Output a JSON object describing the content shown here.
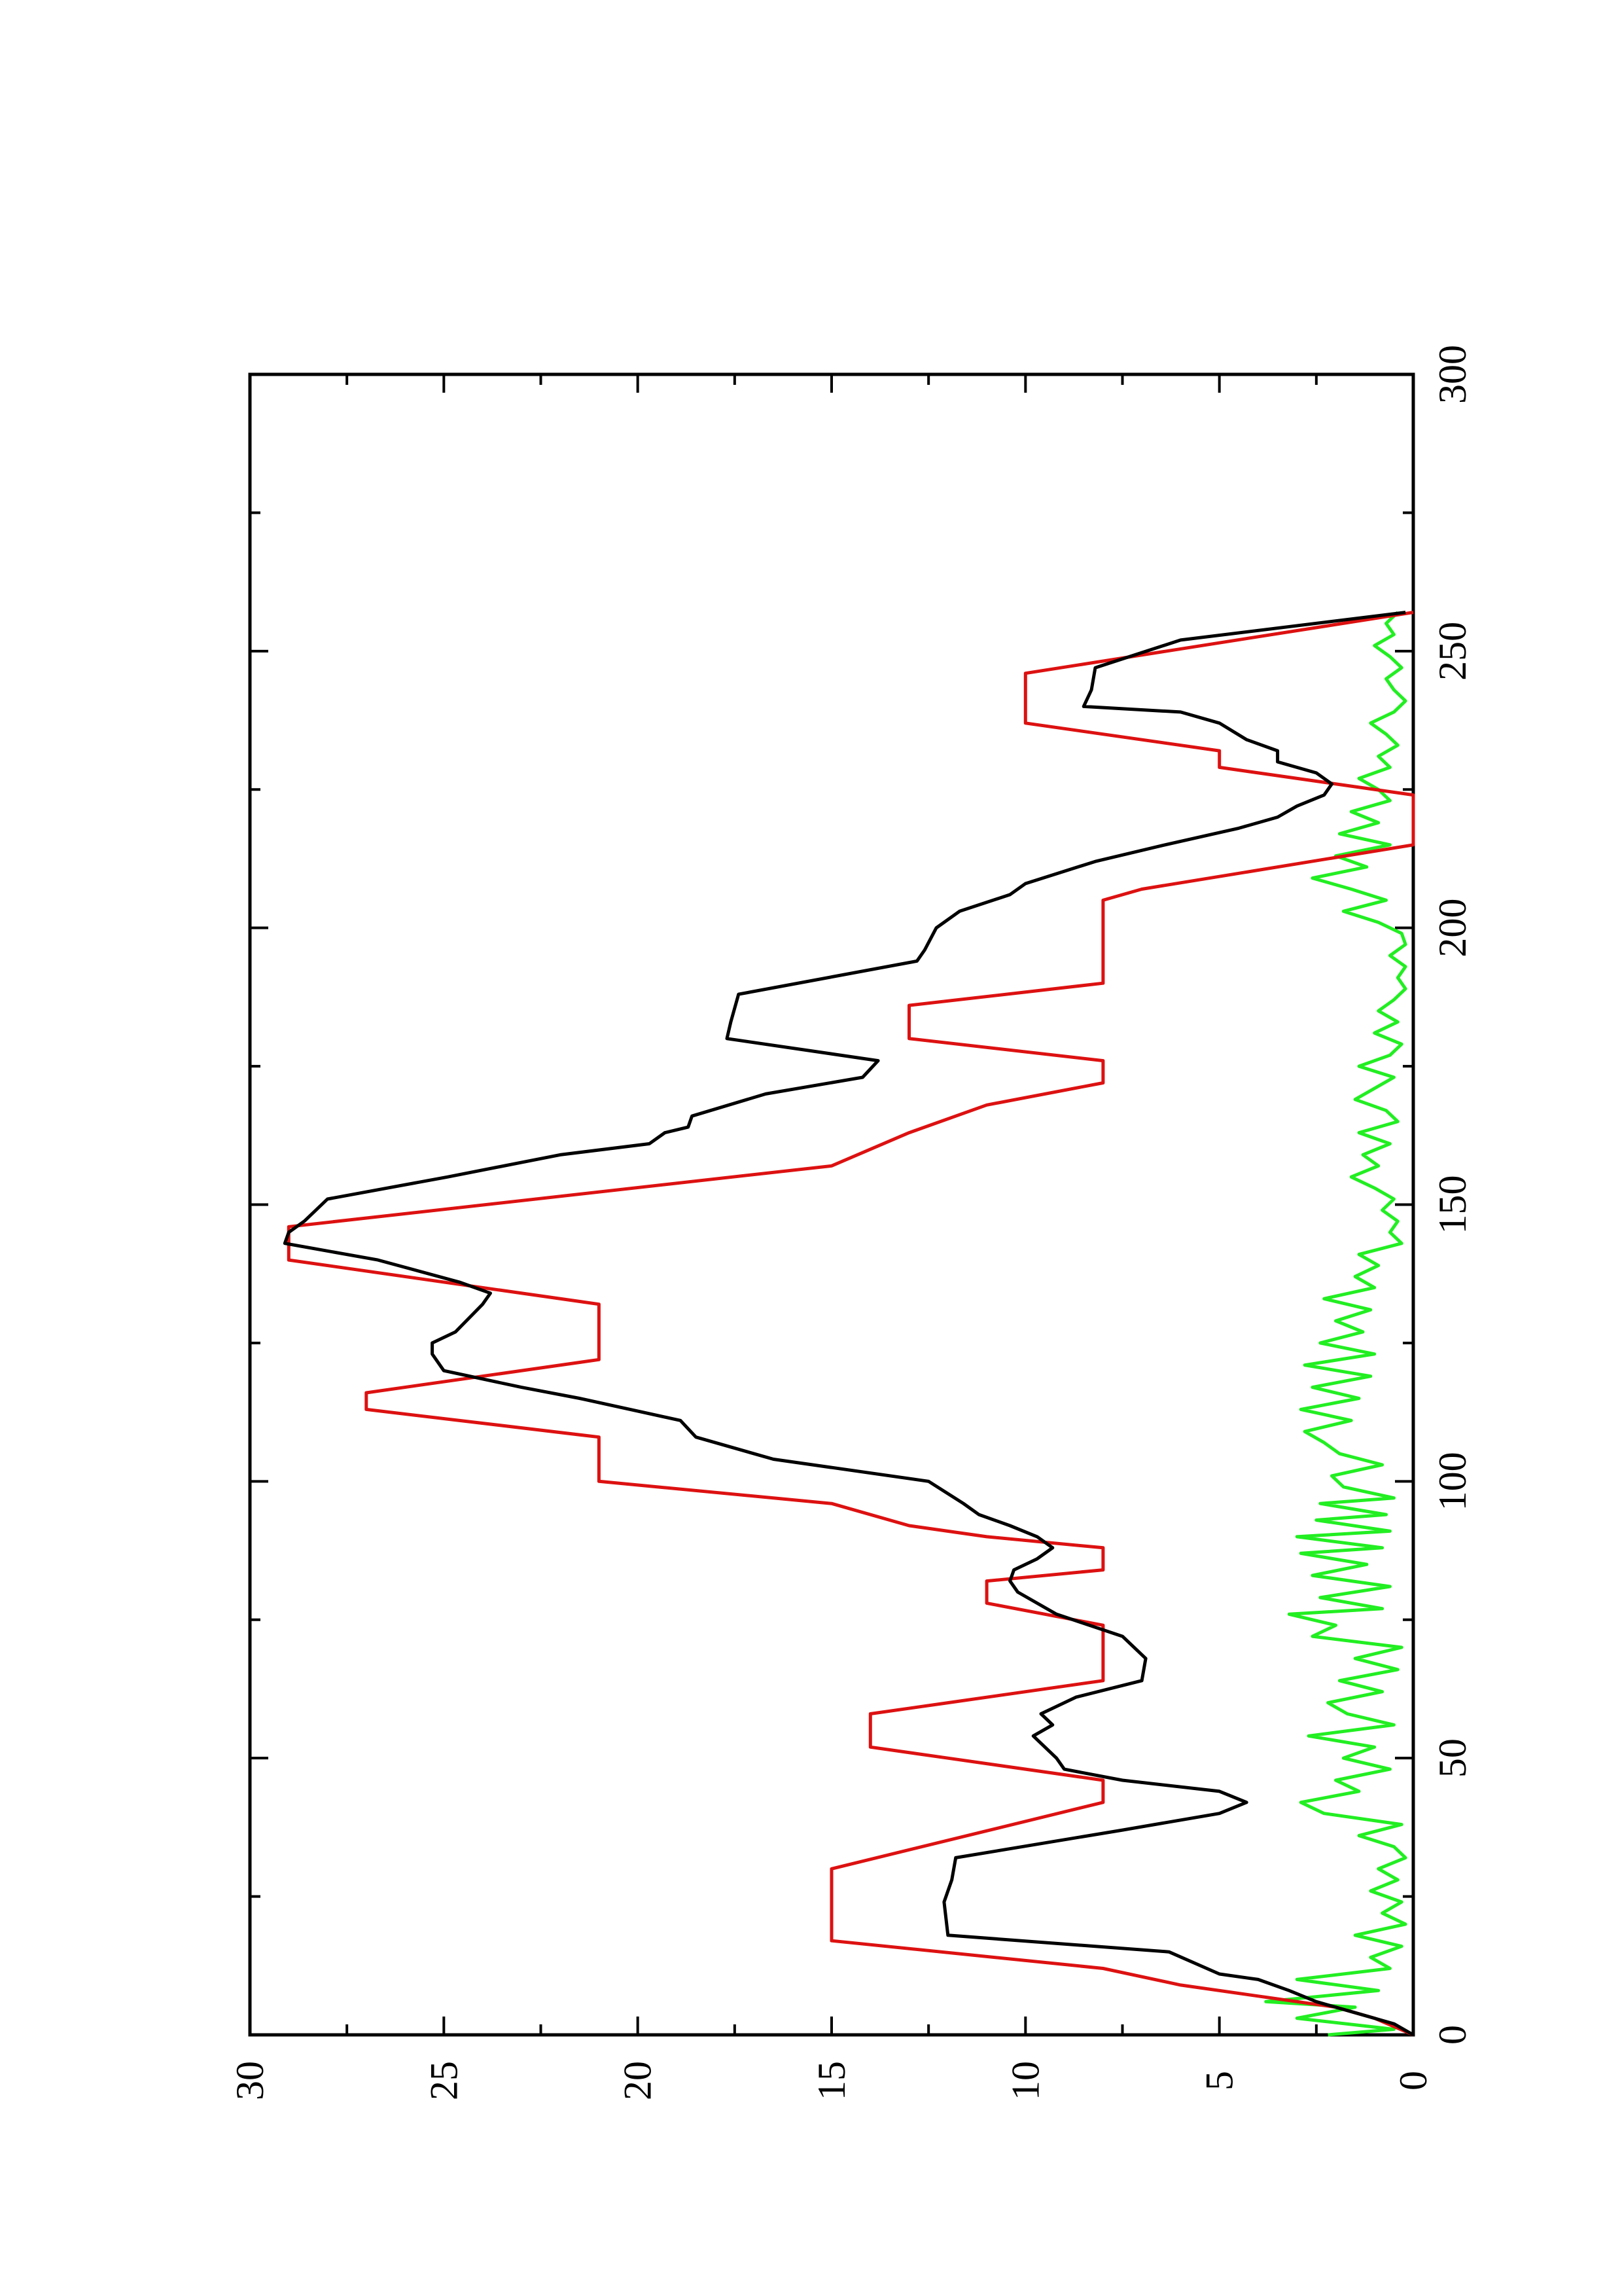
{
  "chart_data": {
    "type": "line",
    "orientation": "rotated-90-counterclockwise",
    "title": "",
    "xlabel": "",
    "ylabel": "",
    "xlim": [
      0,
      300
    ],
    "ylim": [
      0,
      30
    ],
    "xticks": [
      0,
      50,
      100,
      150,
      200,
      250,
      300
    ],
    "yticks": [
      0,
      5,
      10,
      15,
      20,
      25,
      30
    ],
    "grid": false,
    "legend": "none",
    "series": [
      {
        "color": "#dd1111",
        "points": [
          [
            0,
            0
          ],
          [
            3,
            1
          ],
          [
            5,
            2
          ],
          [
            7,
            4
          ],
          [
            9,
            6
          ],
          [
            12,
            8
          ],
          [
            17,
            15
          ],
          [
            30,
            15
          ],
          [
            42,
            8
          ],
          [
            46,
            8
          ],
          [
            50,
            12
          ],
          [
            52,
            14
          ],
          [
            58,
            14
          ],
          [
            60,
            12
          ],
          [
            64,
            8
          ],
          [
            74,
            8
          ],
          [
            78,
            11
          ],
          [
            82,
            11
          ],
          [
            84,
            8
          ],
          [
            88,
            8
          ],
          [
            90,
            11
          ],
          [
            92,
            13
          ],
          [
            96,
            15
          ],
          [
            100,
            21
          ],
          [
            108,
            21
          ],
          [
            113,
            27
          ],
          [
            116,
            27
          ],
          [
            122,
            21
          ],
          [
            132,
            21
          ],
          [
            140,
            29
          ],
          [
            146,
            29
          ],
          [
            157,
            15
          ],
          [
            163,
            13
          ],
          [
            168,
            11
          ],
          [
            172,
            8
          ],
          [
            176,
            8
          ],
          [
            180,
            13
          ],
          [
            186,
            13
          ],
          [
            190,
            8
          ],
          [
            205,
            8
          ],
          [
            207,
            7
          ],
          [
            215,
            0
          ],
          [
            224,
            0
          ],
          [
            229,
            5
          ],
          [
            232,
            5
          ],
          [
            237,
            10
          ],
          [
            246,
            10
          ],
          [
            257,
            0
          ]
        ]
      },
      {
        "color": "#000000",
        "points": [
          [
            0,
            0
          ],
          [
            2,
            0.5
          ],
          [
            4,
            1.5
          ],
          [
            6,
            2.5
          ],
          [
            8,
            3.2
          ],
          [
            10,
            4.0
          ],
          [
            11,
            5.0
          ],
          [
            15,
            6.3
          ],
          [
            18,
            12
          ],
          [
            24,
            12.1
          ],
          [
            28,
            11.9
          ],
          [
            32,
            11.8
          ],
          [
            37,
            7.5
          ],
          [
            40,
            5
          ],
          [
            42,
            4.3
          ],
          [
            44,
            5
          ],
          [
            46,
            7.5
          ],
          [
            48,
            9
          ],
          [
            50,
            9.2
          ],
          [
            52,
            9.5
          ],
          [
            54,
            9.8
          ],
          [
            56,
            9.3
          ],
          [
            58,
            9.6
          ],
          [
            61,
            8.7
          ],
          [
            64,
            7.0
          ],
          [
            68,
            6.9
          ],
          [
            72,
            7.5
          ],
          [
            76,
            9.2
          ],
          [
            80,
            10.2
          ],
          [
            82,
            10.4
          ],
          [
            84,
            10.3
          ],
          [
            86,
            9.7
          ],
          [
            88,
            9.3
          ],
          [
            90,
            9.7
          ],
          [
            92,
            10.4
          ],
          [
            94,
            11.2
          ],
          [
            96,
            11.6
          ],
          [
            100,
            12.5
          ],
          [
            104,
            16.5
          ],
          [
            108,
            18.5
          ],
          [
            111,
            18.9
          ],
          [
            115,
            21.5
          ],
          [
            117,
            23
          ],
          [
            120,
            25
          ],
          [
            123,
            25.3
          ],
          [
            125,
            25.3
          ],
          [
            127,
            24.7
          ],
          [
            132,
            24.0
          ],
          [
            134,
            23.8
          ],
          [
            136,
            24.6
          ],
          [
            140,
            26.7
          ],
          [
            143,
            29.1
          ],
          [
            145,
            29.0
          ],
          [
            147,
            28.6
          ],
          [
            151,
            28.0
          ],
          [
            155,
            24.9
          ],
          [
            159,
            22.0
          ],
          [
            161,
            19.7
          ],
          [
            163,
            19.3
          ],
          [
            164,
            18.7
          ],
          [
            166,
            18.6
          ],
          [
            170,
            16.7
          ],
          [
            173,
            14.2
          ],
          [
            176,
            13.8
          ],
          [
            180,
            17.7
          ],
          [
            183,
            17.6
          ],
          [
            188,
            17.4
          ],
          [
            194,
            12.8
          ],
          [
            196,
            12.6
          ],
          [
            200,
            12.3
          ],
          [
            203,
            11.7
          ],
          [
            206,
            10.4
          ],
          [
            208,
            10.0
          ],
          [
            212,
            8.2
          ],
          [
            215,
            6.4
          ],
          [
            218,
            4.5
          ],
          [
            220,
            3.5
          ],
          [
            222,
            3.0
          ],
          [
            224,
            2.3
          ],
          [
            226,
            2.1
          ],
          [
            228,
            2.5
          ],
          [
            230,
            3.5
          ],
          [
            232,
            3.5
          ],
          [
            234,
            4.3
          ],
          [
            237,
            5.0
          ],
          [
            239,
            6.0
          ],
          [
            240,
            8.5
          ],
          [
            243,
            8.3
          ],
          [
            247,
            8.2
          ],
          [
            252,
            6.0
          ],
          [
            257,
            0.2
          ]
        ]
      },
      {
        "color": "#22ee22",
        "points": [
          [
            0,
            2.2
          ],
          [
            1,
            0.5
          ],
          [
            3,
            3.0
          ],
          [
            5,
            1.5
          ],
          [
            6,
            3.8
          ],
          [
            8,
            0.9
          ],
          [
            10,
            3.0
          ],
          [
            12,
            0.6
          ],
          [
            14,
            1.1
          ],
          [
            16,
            0.3
          ],
          [
            18,
            1.5
          ],
          [
            20,
            0.2
          ],
          [
            22,
            0.8
          ],
          [
            24,
            0.3
          ],
          [
            26,
            1.1
          ],
          [
            28,
            0.4
          ],
          [
            30,
            0.9
          ],
          [
            32,
            0.2
          ],
          [
            34,
            0.5
          ],
          [
            36,
            1.4
          ],
          [
            38,
            0.3
          ],
          [
            40,
            2.3
          ],
          [
            42,
            2.9
          ],
          [
            44,
            1.4
          ],
          [
            46,
            2.0
          ],
          [
            48,
            0.6
          ],
          [
            50,
            1.8
          ],
          [
            52,
            1.0
          ],
          [
            54,
            2.7
          ],
          [
            56,
            0.5
          ],
          [
            58,
            1.7
          ],
          [
            60,
            2.2
          ],
          [
            62,
            0.8
          ],
          [
            64,
            1.9
          ],
          [
            66,
            0.4
          ],
          [
            68,
            1.5
          ],
          [
            70,
            0.3
          ],
          [
            72,
            2.6
          ],
          [
            74,
            2.0
          ],
          [
            76,
            3.2
          ],
          [
            77,
            0.8
          ],
          [
            79,
            2.4
          ],
          [
            81,
            0.6
          ],
          [
            83,
            2.6
          ],
          [
            85,
            1.2
          ],
          [
            87,
            2.9
          ],
          [
            88,
            0.8
          ],
          [
            90,
            3.0
          ],
          [
            91,
            0.6
          ],
          [
            93,
            2.5
          ],
          [
            94,
            0.7
          ],
          [
            96,
            2.4
          ],
          [
            97,
            0.5
          ],
          [
            99,
            1.8
          ],
          [
            101,
            2.1
          ],
          [
            103,
            0.8
          ],
          [
            105,
            1.9
          ],
          [
            107,
            2.3
          ],
          [
            109,
            2.8
          ],
          [
            111,
            1.6
          ],
          [
            113,
            2.9
          ],
          [
            115,
            1.4
          ],
          [
            117,
            2.6
          ],
          [
            119,
            1.1
          ],
          [
            121,
            2.8
          ],
          [
            123,
            1.0
          ],
          [
            125,
            2.4
          ],
          [
            127,
            1.3
          ],
          [
            129,
            2.0
          ],
          [
            131,
            1.1
          ],
          [
            133,
            2.3
          ],
          [
            135,
            1.0
          ],
          [
            137,
            1.5
          ],
          [
            139,
            0.9
          ],
          [
            141,
            1.4
          ],
          [
            143,
            0.3
          ],
          [
            145,
            0.6
          ],
          [
            147,
            0.4
          ],
          [
            149,
            0.8
          ],
          [
            151,
            0.5
          ],
          [
            153,
            1.0
          ],
          [
            155,
            1.6
          ],
          [
            157,
            0.9
          ],
          [
            159,
            1.3
          ],
          [
            161,
            0.6
          ],
          [
            163,
            1.4
          ],
          [
            165,
            0.4
          ],
          [
            167,
            0.7
          ],
          [
            169,
            1.5
          ],
          [
            171,
            1.0
          ],
          [
            173,
            0.5
          ],
          [
            175,
            1.4
          ],
          [
            177,
            0.6
          ],
          [
            179,
            0.3
          ],
          [
            181,
            1.0
          ],
          [
            183,
            0.4
          ],
          [
            185,
            0.9
          ],
          [
            187,
            0.5
          ],
          [
            189,
            0.2
          ],
          [
            191,
            0.4
          ],
          [
            193,
            0.2
          ],
          [
            195,
            0.6
          ],
          [
            197,
            0.2
          ],
          [
            199,
            0.3
          ],
          [
            201,
            0.9
          ],
          [
            203,
            1.8
          ],
          [
            205,
            0.7
          ],
          [
            207,
            1.6
          ],
          [
            209,
            2.6
          ],
          [
            211,
            1.2
          ],
          [
            213,
            2.0
          ],
          [
            215,
            0.6
          ],
          [
            217,
            1.9
          ],
          [
            219,
            0.9
          ],
          [
            221,
            1.6
          ],
          [
            223,
            0.6
          ],
          [
            225,
            0.9
          ],
          [
            227,
            1.4
          ],
          [
            229,
            0.6
          ],
          [
            231,
            0.9
          ],
          [
            233,
            0.4
          ],
          [
            235,
            0.7
          ],
          [
            237,
            1.1
          ],
          [
            239,
            0.5
          ],
          [
            241,
            0.2
          ],
          [
            243,
            0.5
          ],
          [
            245,
            0.7
          ],
          [
            247,
            0.3
          ],
          [
            249,
            0.6
          ],
          [
            251,
            1.0
          ],
          [
            253,
            0.5
          ],
          [
            255,
            0.7
          ],
          [
            257,
            0.4
          ]
        ]
      }
    ]
  }
}
